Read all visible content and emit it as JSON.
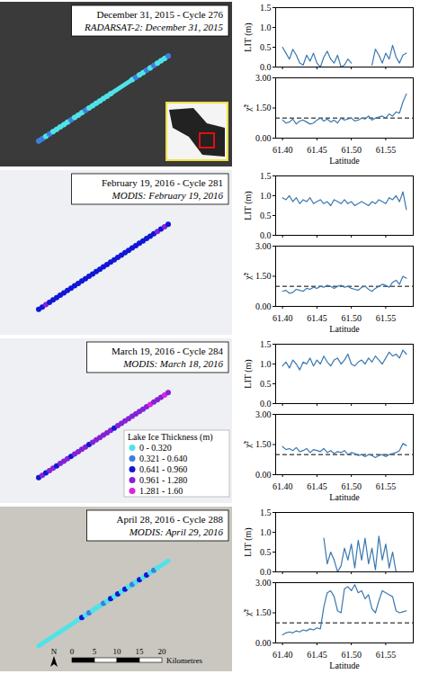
{
  "chart_data": [
    {
      "type": "map",
      "title": "December 31, 2015 - Cycle 276",
      "subtitle": "RADARSAT-2: December 31, 2015"
    },
    {
      "type": "line",
      "ylabel": "LIT (m)",
      "color": "#3a78b0",
      "tick_labels": "y",
      "x": [
        61.4,
        61.405,
        61.41,
        61.415,
        61.42,
        61.425,
        61.43,
        61.435,
        61.44,
        61.445,
        61.45,
        61.455,
        61.46,
        61.465,
        61.47,
        61.475,
        61.48,
        61.485,
        61.49,
        61.495,
        61.5,
        61.505,
        61.51,
        61.515,
        61.52,
        61.525,
        61.53,
        61.535,
        61.54,
        61.545,
        61.55,
        61.555,
        61.56,
        61.565,
        61.57,
        61.575,
        61.58
      ],
      "values": [
        0.5,
        0.35,
        0.2,
        0.45,
        0.3,
        0.1,
        0.05,
        0.3,
        0.15,
        0.35,
        0.1,
        0,
        0.25,
        0.4,
        0.2,
        0.1,
        0.3,
        0,
        0.05,
        0.2,
        0.1,
        null,
        null,
        null,
        null,
        null,
        0.05,
        0.45,
        0.3,
        0.1,
        0.35,
        0.2,
        0.55,
        0.25,
        0.1,
        0.3,
        0.35
      ],
      "xlim": [
        61.39,
        61.59
      ],
      "xticks": [
        {
          "value": 61.4,
          "label": "61.40"
        },
        61.45,
        {
          "value": 61.5,
          "label": "61.50"
        },
        61.55
      ],
      "ylim": [
        0,
        1.5
      ],
      "yticks": [
        {
          "value": 0,
          "label": "0.0"
        },
        0.5,
        {
          "value": 1,
          "label": "1.0"
        },
        1.5
      ]
    },
    {
      "type": "line",
      "ylabel": "χ̃²",
      "xlabel": "Latitude",
      "color": "#3a78b0",
      "x": [
        61.4,
        61.405,
        61.41,
        61.415,
        61.42,
        61.425,
        61.43,
        61.435,
        61.44,
        61.445,
        61.45,
        61.455,
        61.46,
        61.465,
        61.47,
        61.475,
        61.48,
        61.485,
        61.49,
        61.495,
        61.5,
        61.505,
        61.51,
        61.515,
        61.52,
        61.525,
        61.53,
        61.535,
        61.54,
        61.545,
        61.55,
        61.555,
        61.56,
        61.565,
        61.57,
        61.575,
        61.58
      ],
      "values": [
        0.9,
        0.75,
        0.8,
        0.95,
        0.7,
        0.85,
        0.9,
        0.8,
        0.7,
        0.75,
        0.9,
        1.0,
        0.85,
        0.95,
        0.8,
        0.9,
        0.75,
        1.0,
        0.9,
        0.95,
        1.0,
        0.85,
        0.9,
        1.0,
        0.95,
        1.1,
        0.9,
        1.0,
        1.05,
        1.1,
        1.0,
        1.2,
        1.1,
        1.3,
        1.25,
        1.8,
        2.2
      ],
      "reference_line": {
        "value": 1,
        "line_style": "dashed",
        "color": "#000000"
      },
      "xlim": [
        61.39,
        61.59
      ],
      "xticks": [
        {
          "value": 61.4,
          "label": "61.40"
        },
        61.45,
        {
          "value": 61.5,
          "label": "61.50"
        },
        61.55
      ],
      "ylim": [
        0,
        3
      ],
      "yticks": [
        {
          "value": 0,
          "label": "0.00"
        },
        {
          "value": 1.5,
          "label": "1.50"
        },
        {
          "value": 3,
          "label": "3.00"
        }
      ]
    },
    {
      "type": "map",
      "title": "February 19, 2016 - Cycle 281",
      "subtitle": "MODIS: February 19, 2016"
    },
    {
      "type": "line",
      "ylabel": "LIT (m)",
      "color": "#3a78b0",
      "tick_labels": "y",
      "x": [
        61.4,
        61.405,
        61.41,
        61.415,
        61.42,
        61.425,
        61.43,
        61.435,
        61.44,
        61.445,
        61.45,
        61.455,
        61.46,
        61.465,
        61.47,
        61.475,
        61.48,
        61.485,
        61.49,
        61.495,
        61.5,
        61.505,
        61.51,
        61.515,
        61.52,
        61.525,
        61.53,
        61.535,
        61.54,
        61.545,
        61.55,
        61.555,
        61.56,
        61.565,
        61.57,
        61.575,
        61.58
      ],
      "values": [
        0.95,
        0.9,
        1.0,
        0.85,
        0.95,
        0.8,
        0.9,
        0.85,
        0.95,
        0.8,
        0.85,
        0.9,
        0.8,
        0.85,
        0.75,
        0.9,
        0.85,
        0.8,
        0.9,
        0.8,
        0.85,
        0.75,
        0.8,
        0.85,
        0.8,
        0.75,
        0.85,
        0.8,
        0.9,
        0.85,
        0.8,
        0.95,
        0.9,
        1.0,
        0.85,
        1.1,
        0.65
      ],
      "xlim": [
        61.39,
        61.59
      ],
      "xticks": [
        {
          "value": 61.4,
          "label": "61.40"
        },
        61.45,
        {
          "value": 61.5,
          "label": "61.50"
        },
        61.55
      ],
      "ylim": [
        0,
        1.5
      ],
      "yticks": [
        {
          "value": 0,
          "label": "0.0"
        },
        0.5,
        {
          "value": 1,
          "label": "1.0"
        },
        1.5
      ]
    },
    {
      "type": "line",
      "ylabel": "χ̃²",
      "xlabel": "Latitude",
      "color": "#3a78b0",
      "x": [
        61.4,
        61.405,
        61.41,
        61.415,
        61.42,
        61.425,
        61.43,
        61.435,
        61.44,
        61.445,
        61.45,
        61.455,
        61.46,
        61.465,
        61.47,
        61.475,
        61.48,
        61.485,
        61.49,
        61.495,
        61.5,
        61.505,
        61.51,
        61.515,
        61.52,
        61.525,
        61.53,
        61.535,
        61.54,
        61.545,
        61.55,
        61.555,
        61.56,
        61.565,
        61.57,
        61.575,
        61.58
      ],
      "values": [
        0.75,
        0.8,
        0.65,
        0.7,
        0.85,
        0.8,
        0.75,
        0.9,
        0.85,
        0.95,
        0.9,
        1.0,
        0.95,
        1.05,
        1.0,
        0.9,
        1.0,
        1.05,
        0.95,
        1.0,
        0.9,
        0.85,
        0.8,
        0.95,
        1.0,
        0.85,
        0.75,
        0.9,
        1.0,
        1.1,
        1.05,
        0.95,
        1.2,
        1.3,
        1.1,
        1.5,
        1.4
      ],
      "reference_line": {
        "value": 1,
        "line_style": "dashed",
        "color": "#000000"
      },
      "xlim": [
        61.39,
        61.59
      ],
      "xticks": [
        {
          "value": 61.4,
          "label": "61.40"
        },
        61.45,
        {
          "value": 61.5,
          "label": "61.50"
        },
        61.55
      ],
      "ylim": [
        0,
        3
      ],
      "yticks": [
        {
          "value": 0,
          "label": "0.00"
        },
        {
          "value": 1.5,
          "label": "1.50"
        },
        {
          "value": 3,
          "label": "3.00"
        }
      ]
    },
    {
      "type": "map",
      "title": "March 19, 2016 - Cycle 284",
      "subtitle": "MODIS: March 18, 2016",
      "color_classes": {
        "title": "Lake Ice Thickness (m)",
        "categories": [
          "0 - 0.320",
          "0.321 - 0.640",
          "0.641 - 0.960",
          "0.961 - 1.280",
          "1.281 - 1.60"
        ],
        "bins": [
          0,
          0.32,
          0.64,
          0.96,
          1.28,
          1.6
        ],
        "colors": [
          "#4fe3e8",
          "#3c7ee0",
          "#1414d6",
          "#8a1fd8",
          "#e020e0"
        ]
      }
    },
    {
      "type": "line",
      "ylabel": "LIT (m)",
      "color": "#3a78b0",
      "tick_labels": "y",
      "x": [
        61.4,
        61.405,
        61.41,
        61.415,
        61.42,
        61.425,
        61.43,
        61.435,
        61.44,
        61.445,
        61.45,
        61.455,
        61.46,
        61.465,
        61.47,
        61.475,
        61.48,
        61.485,
        61.49,
        61.495,
        61.5,
        61.505,
        61.51,
        61.515,
        61.52,
        61.525,
        61.53,
        61.535,
        61.54,
        61.545,
        61.55,
        61.555,
        61.56,
        61.565,
        61.57,
        61.575,
        61.58
      ],
      "values": [
        0.95,
        1.05,
        0.9,
        1.1,
        1.0,
        0.85,
        1.05,
        1.0,
        1.15,
        0.95,
        1.1,
        1.0,
        1.2,
        1.05,
        0.95,
        1.1,
        1.15,
        1.0,
        1.1,
        1.25,
        1.0,
        0.95,
        1.05,
        1.1,
        1.0,
        1.15,
        1.05,
        1.2,
        1.1,
        1.0,
        1.15,
        1.3,
        1.2,
        1.25,
        1.15,
        1.35,
        1.25
      ],
      "xlim": [
        61.39,
        61.59
      ],
      "xticks": [
        {
          "value": 61.4,
          "label": "61.40"
        },
        61.45,
        {
          "value": 61.5,
          "label": "61.50"
        },
        61.55
      ],
      "ylim": [
        0,
        1.5
      ],
      "yticks": [
        {
          "value": 0,
          "label": "0.0"
        },
        0.5,
        {
          "value": 1,
          "label": "1.0"
        },
        1.5
      ]
    },
    {
      "type": "line",
      "ylabel": "χ̃²",
      "xlabel": "Latitude",
      "color": "#3a78b0",
      "x": [
        61.4,
        61.405,
        61.41,
        61.415,
        61.42,
        61.425,
        61.43,
        61.435,
        61.44,
        61.445,
        61.45,
        61.455,
        61.46,
        61.465,
        61.47,
        61.475,
        61.48,
        61.485,
        61.49,
        61.495,
        61.5,
        61.505,
        61.51,
        61.515,
        61.52,
        61.525,
        61.53,
        61.535,
        61.54,
        61.545,
        61.55,
        61.555,
        61.56,
        61.565,
        61.57,
        61.575,
        61.58
      ],
      "values": [
        1.4,
        1.25,
        1.3,
        1.2,
        1.35,
        1.15,
        1.2,
        1.3,
        1.1,
        1.25,
        1.2,
        1.15,
        1.3,
        1.1,
        1.2,
        1.05,
        1.15,
        1.1,
        1.2,
        1.0,
        1.1,
        1.05,
        0.95,
        1.0,
        0.9,
        1.0,
        0.95,
        0.85,
        0.95,
        1.0,
        0.9,
        1.0,
        1.05,
        1.1,
        1.2,
        1.55,
        1.45
      ],
      "reference_line": {
        "value": 1,
        "line_style": "dashed",
        "color": "#000000"
      },
      "xlim": [
        61.39,
        61.59
      ],
      "xticks": [
        {
          "value": 61.4,
          "label": "61.40"
        },
        61.45,
        {
          "value": 61.5,
          "label": "61.50"
        },
        61.55
      ],
      "ylim": [
        0,
        3
      ],
      "yticks": [
        {
          "value": 0,
          "label": "0.00"
        },
        {
          "value": 1.5,
          "label": "1.50"
        },
        {
          "value": 3,
          "label": "3.00"
        }
      ]
    },
    {
      "type": "map",
      "title": "April 28, 2016 - Cycle 288",
      "subtitle": "MODIS: April 29, 2016",
      "scale_bar": {
        "ticks": [
          0,
          5,
          10,
          15,
          20
        ],
        "label": "Kilometres"
      },
      "north": "N"
    },
    {
      "type": "line",
      "ylabel": "LIT (m)",
      "color": "#3a78b0",
      "tick_labels": "y",
      "x": [
        61.4,
        61.405,
        61.41,
        61.415,
        61.42,
        61.425,
        61.43,
        61.435,
        61.44,
        61.445,
        61.45,
        61.455,
        61.46,
        61.465,
        61.47,
        61.475,
        61.48,
        61.485,
        61.49,
        61.495,
        61.5,
        61.505,
        61.51,
        61.515,
        61.52,
        61.525,
        61.53,
        61.535,
        61.54,
        61.545,
        61.55,
        61.555,
        61.56,
        61.565,
        61.57,
        61.575,
        61.58
      ],
      "values": [
        null,
        null,
        null,
        null,
        null,
        null,
        null,
        null,
        null,
        null,
        null,
        null,
        0.85,
        0.2,
        0.5,
        0.3,
        0.0,
        0.15,
        0.6,
        0.3,
        0.7,
        0.1,
        0.8,
        0.3,
        0.85,
        0.2,
        0.6,
        0.05,
        0.9,
        0.3,
        0.7,
        0.1,
        0.5,
        0.0,
        null,
        null,
        null
      ],
      "xlim": [
        61.39,
        61.59
      ],
      "xticks": [
        {
          "value": 61.4,
          "label": "61.40"
        },
        61.45,
        {
          "value": 61.5,
          "label": "61.50"
        },
        61.55
      ],
      "ylim": [
        0,
        1.5
      ],
      "yticks": [
        {
          "value": 0,
          "label": "0.0"
        },
        0.5,
        {
          "value": 1,
          "label": "1.0"
        },
        1.5
      ]
    },
    {
      "type": "line",
      "ylabel": "χ̃²",
      "xlabel": "Latitude",
      "color": "#3a78b0",
      "x": [
        61.4,
        61.405,
        61.41,
        61.415,
        61.42,
        61.425,
        61.43,
        61.435,
        61.44,
        61.445,
        61.45,
        61.455,
        61.46,
        61.465,
        61.47,
        61.475,
        61.48,
        61.485,
        61.49,
        61.495,
        61.5,
        61.505,
        61.51,
        61.515,
        61.52,
        61.525,
        61.53,
        61.535,
        61.54,
        61.545,
        61.55,
        61.555,
        61.56,
        61.565,
        61.57,
        61.575,
        61.58
      ],
      "values": [
        0.4,
        0.5,
        0.55,
        0.5,
        0.6,
        0.55,
        0.65,
        0.6,
        0.7,
        0.65,
        0.75,
        0.7,
        1.8,
        2.5,
        2.6,
        2.3,
        1.6,
        1.5,
        2.7,
        2.8,
        2.6,
        2.9,
        2.5,
        2.6,
        2.2,
        2.4,
        1.7,
        1.5,
        2.1,
        2.6,
        2.5,
        2.4,
        2.3,
        1.6,
        1.5,
        1.55,
        1.6
      ],
      "reference_line": {
        "value": 1,
        "line_style": "dashed",
        "color": "#000000"
      },
      "xlim": [
        61.39,
        61.59
      ],
      "xticks": [
        {
          "value": 61.4,
          "label": "61.40"
        },
        61.45,
        {
          "value": 61.5,
          "label": "61.50"
        },
        61.55
      ],
      "ylim": [
        0,
        3
      ],
      "yticks": [
        {
          "value": 0,
          "label": "0.00"
        },
        {
          "value": 1.5,
          "label": "1.50"
        },
        {
          "value": 3,
          "label": "3.00"
        }
      ]
    }
  ]
}
